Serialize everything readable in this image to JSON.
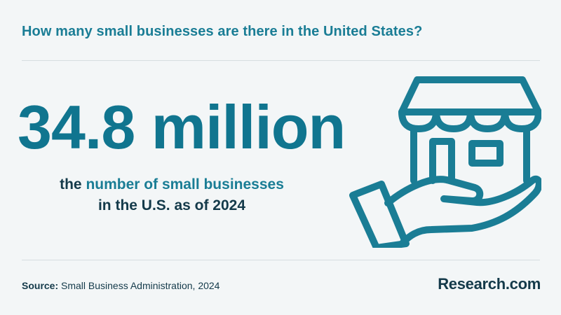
{
  "header": {
    "question": "How many small businesses are there in the United States?"
  },
  "stat": {
    "value": "34.8 million",
    "caption_prefix": "the ",
    "caption_highlight": "number of small businesses",
    "caption_line2": "in the U.S. as of 2024"
  },
  "illustration": {
    "icon": "store-in-hand-icon"
  },
  "footer": {
    "source_label": "Source:",
    "source_text": " Small Business Administration, 2024",
    "brand": "Research.com"
  },
  "colors": {
    "accent": "#1a7d95",
    "dark_text": "#143a4a",
    "background": "#f3f6f7"
  }
}
